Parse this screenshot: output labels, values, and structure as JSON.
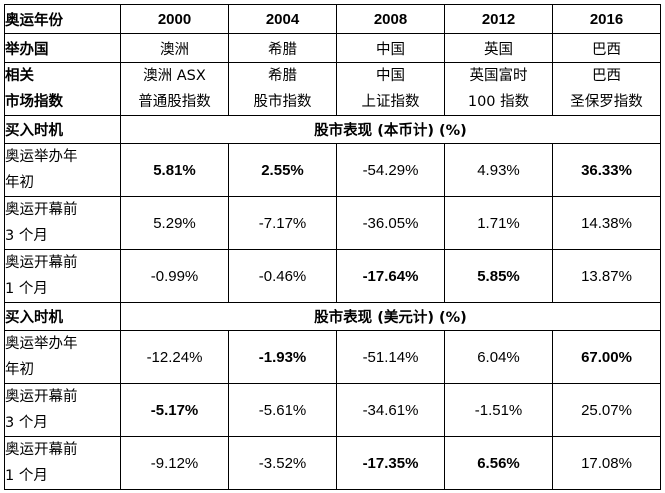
{
  "header": {
    "label": "奥运年份",
    "years": [
      "2000",
      "2004",
      "2008",
      "2012",
      "2016"
    ]
  },
  "host": {
    "label": "举办国",
    "countries": [
      "澳洲",
      "希腊",
      "中国",
      "英国",
      "巴西"
    ]
  },
  "index": {
    "label_line1": "相关",
    "label_line2": "市场指数",
    "names": [
      {
        "line1": "澳洲 ASX",
        "line2": "普通股指数"
      },
      {
        "line1": "希腊",
        "line2": "股市指数"
      },
      {
        "line1": "中国",
        "line2": "上证指数"
      },
      {
        "line1": "英国富时",
        "line2": "100 指数"
      },
      {
        "line1": "巴西",
        "line2": "圣保罗指数"
      }
    ]
  },
  "sections": [
    {
      "label": "买入时机",
      "title": "股市表现 (本币计) (%)",
      "rows": [
        {
          "line1": "奥运举办年",
          "line2": "年初",
          "values": [
            "5.81%",
            "2.55%",
            "-54.29%",
            "4.93%",
            "36.33%"
          ],
          "bold": [
            true,
            true,
            false,
            false,
            true
          ]
        },
        {
          "line1": "奥运开幕前",
          "line2": "3 个月",
          "values": [
            "5.29%",
            "-7.17%",
            "-36.05%",
            "1.71%",
            "14.38%"
          ],
          "bold": [
            false,
            false,
            false,
            false,
            false
          ]
        },
        {
          "line1": "奥运开幕前",
          "line2": "1 个月",
          "values": [
            "-0.99%",
            "-0.46%",
            "-17.64%",
            "5.85%",
            "13.87%"
          ],
          "bold": [
            false,
            false,
            true,
            true,
            false
          ]
        }
      ]
    },
    {
      "label": "买入时机",
      "title": "股市表现 (美元计) (%)",
      "rows": [
        {
          "line1": "奥运举办年",
          "line2": "年初",
          "values": [
            "-12.24%",
            "-1.93%",
            "-51.14%",
            "6.04%",
            "67.00%"
          ],
          "bold": [
            false,
            true,
            false,
            false,
            true
          ]
        },
        {
          "line1": "奥运开幕前",
          "line2": "3 个月",
          "values": [
            "-5.17%",
            "-5.61%",
            "-34.61%",
            "-1.51%",
            "25.07%"
          ],
          "bold": [
            true,
            false,
            false,
            false,
            false
          ]
        },
        {
          "line1": "奥运开幕前",
          "line2": "1 个月",
          "values": [
            "-9.12%",
            "-3.52%",
            "-17.35%",
            "6.56%",
            "17.08%"
          ],
          "bold": [
            false,
            false,
            true,
            true,
            false
          ]
        }
      ]
    }
  ]
}
